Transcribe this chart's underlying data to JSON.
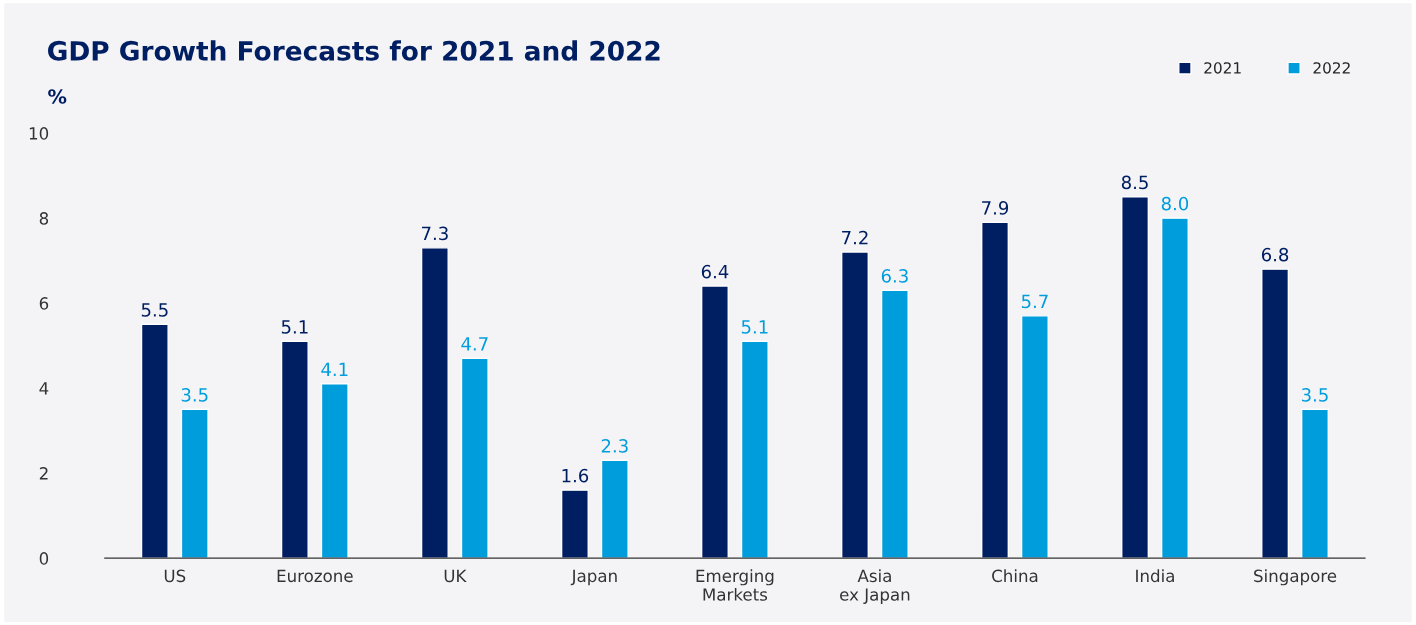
{
  "chart_data": {
    "type": "bar",
    "title": "GDP Growth Forecasts for 2021 and 2022",
    "ylabel": "%",
    "categories": [
      "US",
      "Eurozone",
      "UK",
      "Japan",
      "Emerging\nMarkets",
      "Asia\nex Japan",
      "China",
      "India",
      "Singapore"
    ],
    "series": [
      {
        "name": "2021",
        "color": "#001e62",
        "values": [
          5.5,
          5.1,
          7.3,
          1.6,
          6.4,
          7.2,
          7.9,
          8.5,
          6.8
        ],
        "value_labels": [
          "5.5",
          "5.1",
          "7.3",
          "1.6",
          "6.4",
          "7.2",
          "7.9",
          "8.5",
          "6.8"
        ]
      },
      {
        "name": "2022",
        "color": "#009ddc",
        "values": [
          3.5,
          4.1,
          4.7,
          2.3,
          5.1,
          6.3,
          5.7,
          8.0,
          3.5
        ],
        "value_labels": [
          "3.5",
          "4.1",
          "4.7",
          "2.3",
          "5.1",
          "6.3",
          "5.7",
          "8.0",
          "3.5"
        ]
      }
    ],
    "ylim": [
      0,
      10
    ],
    "yticks": [
      0,
      2,
      4,
      6,
      8,
      10
    ],
    "grid": false,
    "legend": "top right"
  }
}
